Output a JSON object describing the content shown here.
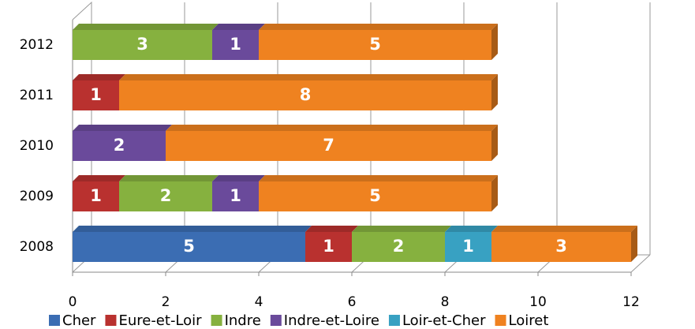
{
  "chart_data": {
    "type": "stacked-bar-horizontal",
    "categories": [
      "2008",
      "2009",
      "2010",
      "2011",
      "2012"
    ],
    "series": [
      {
        "name": "Cher",
        "color": "#3b6db3",
        "values": [
          5,
          null,
          null,
          null,
          null
        ]
      },
      {
        "name": "Eure-et-Loir",
        "color": "#b9312f",
        "values": [
          1,
          1,
          null,
          1,
          null
        ]
      },
      {
        "name": "Indre",
        "color": "#86b13f",
        "values": [
          2,
          2,
          null,
          null,
          3
        ]
      },
      {
        "name": "Indre-et-Loire",
        "color": "#6a4a9b",
        "values": [
          null,
          1,
          2,
          null,
          1
        ]
      },
      {
        "name": "Loir-et-Cher",
        "color": "#38a1c2",
        "values": [
          1,
          null,
          null,
          null,
          null
        ]
      },
      {
        "name": "Loiret",
        "color": "#ef8220",
        "values": [
          3,
          5,
          7,
          8,
          5
        ]
      }
    ],
    "xlim": [
      0,
      12
    ],
    "xticks": [
      0,
      2,
      4,
      6,
      8,
      10,
      12
    ],
    "grid": true,
    "legend": "bottom"
  }
}
